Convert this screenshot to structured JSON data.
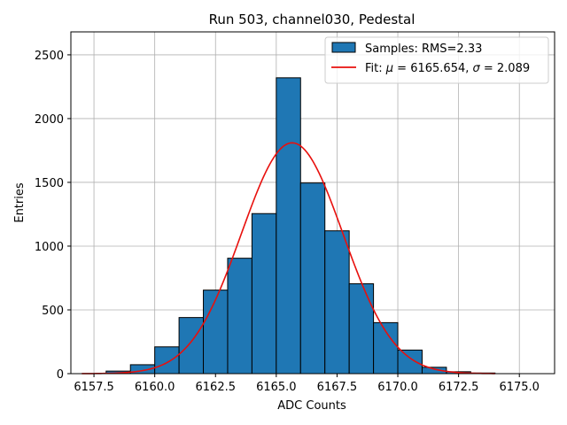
{
  "chart_data": {
    "type": "bar",
    "title": "Run 503, channel030, Pedestal",
    "xlabel": "ADC Counts",
    "ylabel": "Entries",
    "xlim": [
      6156.55,
      6176.45
    ],
    "ylim": [
      0,
      2680
    ],
    "xticks": [
      6157.5,
      6160.0,
      6162.5,
      6165.0,
      6167.5,
      6170.0,
      6172.5,
      6175.0
    ],
    "xtick_labels": [
      "6157.5",
      "6160.0",
      "6162.5",
      "6165.0",
      "6167.5",
      "6170.0",
      "6172.5",
      "6175.0"
    ],
    "yticks": [
      0,
      500,
      1000,
      1500,
      2000,
      2500
    ],
    "ytick_labels": [
      "0",
      "500",
      "1000",
      "1500",
      "2000",
      "2500"
    ],
    "grid": true,
    "legend_position": "top-right",
    "bar_color": "#1f77b4",
    "fit_color": "#e8100d",
    "bins": [
      {
        "x0": 6158,
        "x1": 6159,
        "value": 20
      },
      {
        "x0": 6159,
        "x1": 6160,
        "value": 70
      },
      {
        "x0": 6160,
        "x1": 6161,
        "value": 210
      },
      {
        "x0": 6161,
        "x1": 6162,
        "value": 440
      },
      {
        "x0": 6162,
        "x1": 6163,
        "value": 655
      },
      {
        "x0": 6163,
        "x1": 6164,
        "value": 905
      },
      {
        "x0": 6164,
        "x1": 6165,
        "value": 1255
      },
      {
        "x0": 6165,
        "x1": 6166,
        "value": 2320
      },
      {
        "x0": 6166,
        "x1": 6167,
        "value": 1495
      },
      {
        "x0": 6167,
        "x1": 6168,
        "value": 1120
      },
      {
        "x0": 6168,
        "x1": 6169,
        "value": 705
      },
      {
        "x0": 6169,
        "x1": 6170,
        "value": 400
      },
      {
        "x0": 6170,
        "x1": 6171,
        "value": 185
      },
      {
        "x0": 6171,
        "x1": 6172,
        "value": 50
      },
      {
        "x0": 6172,
        "x1": 6173,
        "value": 15
      },
      {
        "x0": 6173,
        "x1": 6174,
        "value": 5
      }
    ],
    "series": [
      {
        "name": "Samples: RMS=2.33",
        "kind": "histogram"
      },
      {
        "name": "Fit: μ = 6165.654, σ = 2.089",
        "kind": "gaussian-fit",
        "mu": 6165.654,
        "sigma": 2.089,
        "amplitude": 1810,
        "x_range": [
          6157.0,
          6174.0
        ]
      }
    ],
    "legend": {
      "samples_prefix": "Samples: RMS=2.33",
      "fit_prefix": "Fit: ",
      "fit_mu_symbol": "μ",
      "fit_mu_value": " = 6165.654, ",
      "fit_sigma_symbol": "σ",
      "fit_sigma_value": " = 2.089"
    }
  }
}
